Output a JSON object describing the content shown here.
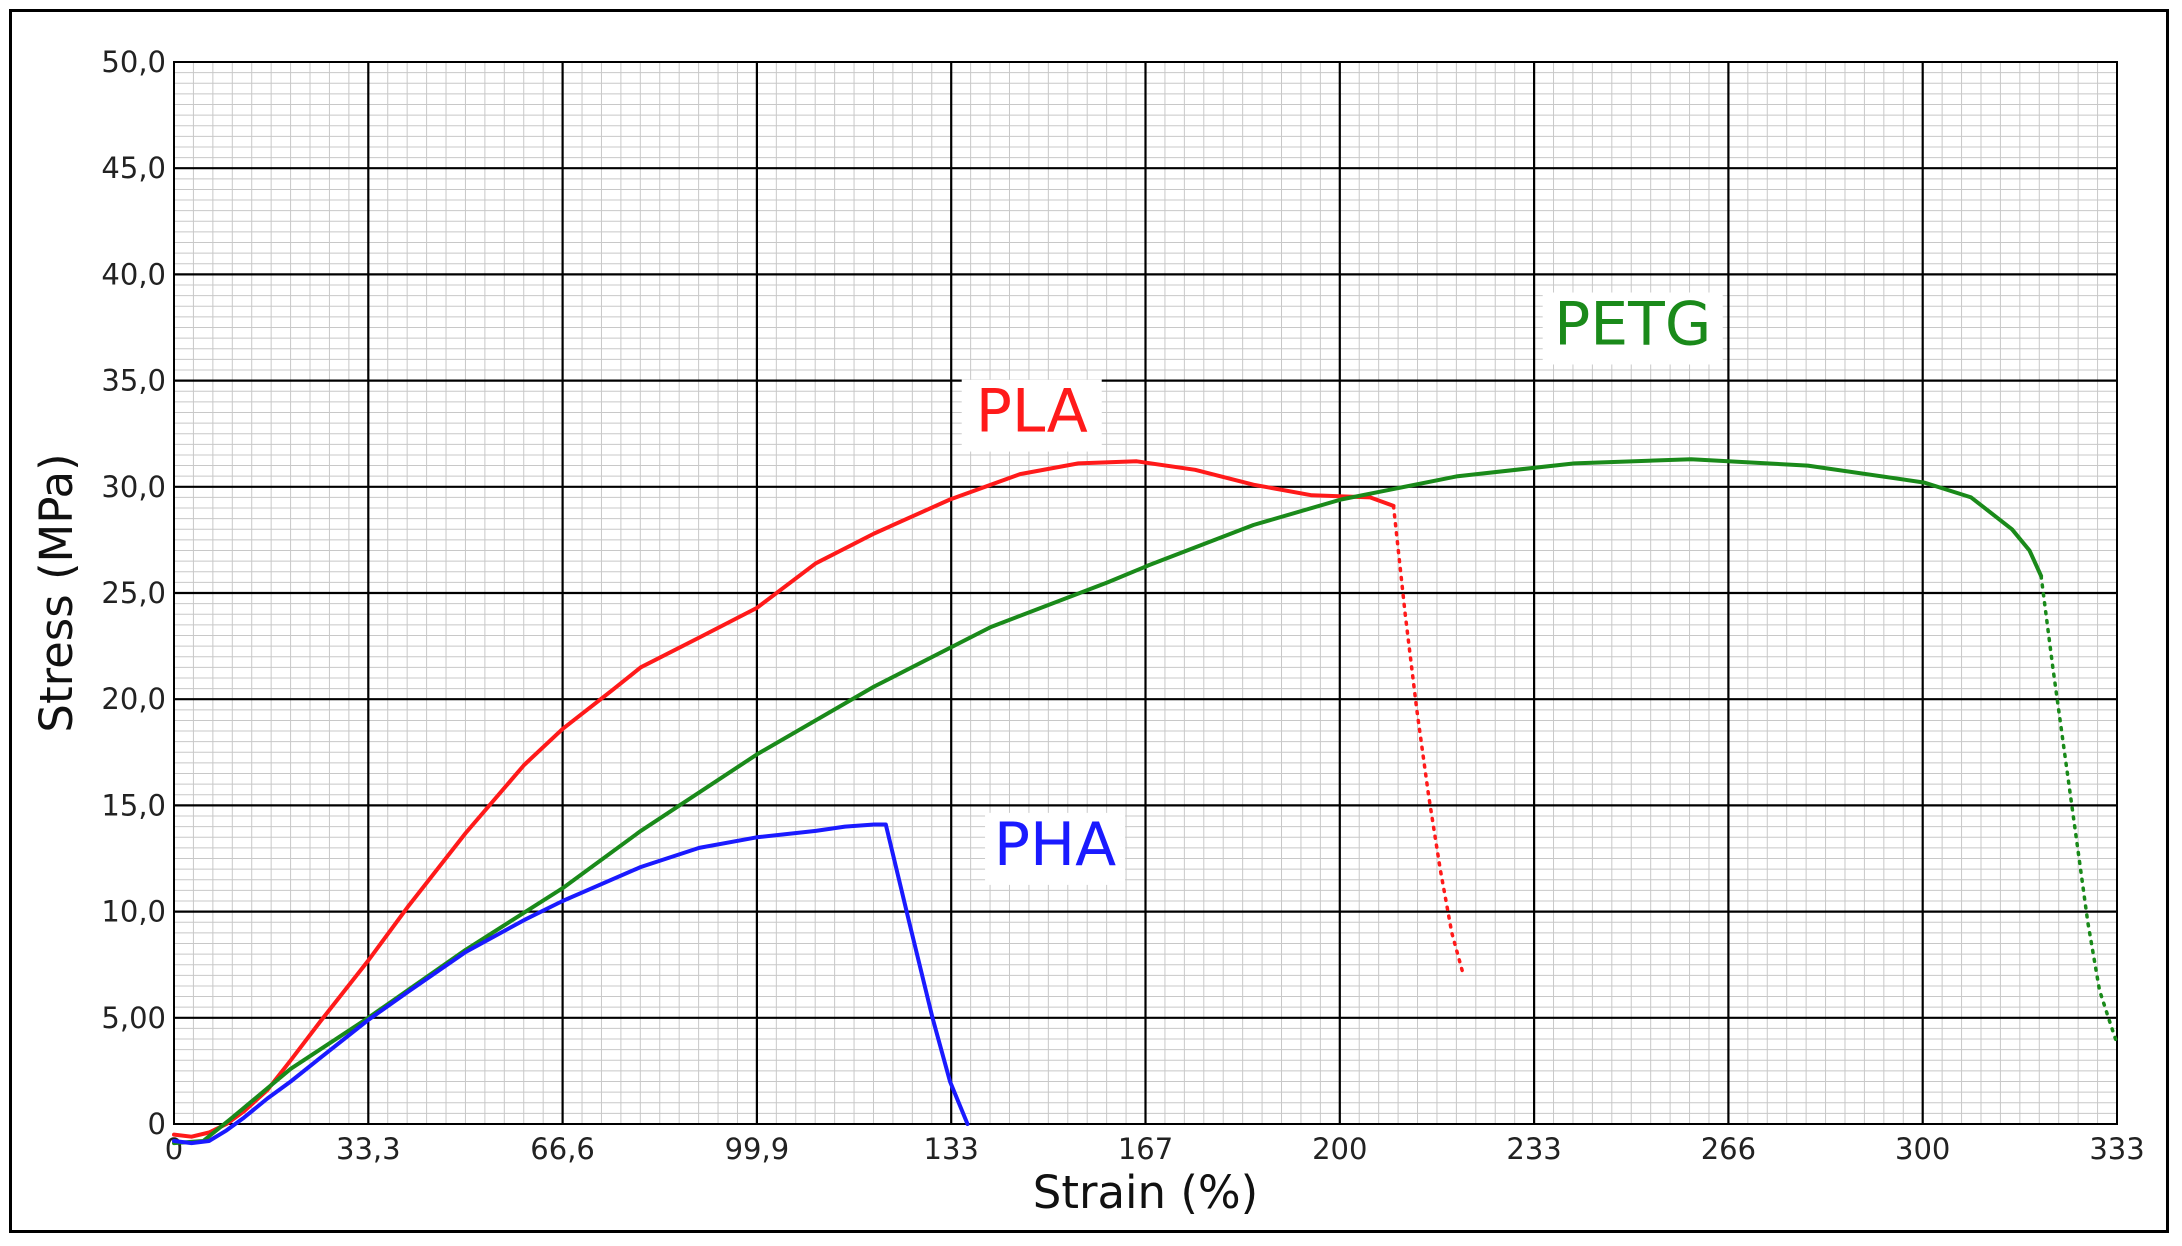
{
  "chart_data": {
    "type": "line",
    "title": "",
    "xlabel": "Strain (%)",
    "ylabel": "Stress (MPa)",
    "xlim": [
      0,
      333
    ],
    "ylim": [
      0,
      50
    ],
    "x_tick_values": [
      0,
      33.3,
      66.6,
      99.9,
      133,
      167,
      200,
      233,
      266,
      300,
      333
    ],
    "x_tick_labels": [
      "0",
      "33,3",
      "66,6",
      "99,9",
      "133",
      "167",
      "200",
      "233",
      "266",
      "300",
      "333"
    ],
    "y_tick_values": [
      0,
      5,
      10,
      15,
      20,
      25,
      30,
      35,
      40,
      45,
      50
    ],
    "y_tick_labels": [
      "0",
      "5,00",
      "10,0",
      "15,0",
      "20,0",
      "25,0",
      "30,0",
      "35,0",
      "40,0",
      "45,0",
      "50,0"
    ],
    "grid": true,
    "series": [
      {
        "name": "PLA",
        "color": "#ff1a1a",
        "label_anchor": {
          "x": 147,
          "y": 32.6
        },
        "x": [
          0,
          3,
          6,
          9,
          12,
          16,
          20,
          25,
          33.3,
          40,
          50,
          60,
          66.6,
          75,
          80,
          90,
          99.9,
          110,
          120,
          133,
          145,
          155,
          165,
          175,
          185,
          195,
          205,
          209
        ],
        "y": [
          -0.5,
          -0.6,
          -0.4,
          0,
          0.6,
          1.6,
          3.0,
          4.8,
          7.7,
          10.2,
          13.7,
          16.9,
          18.6,
          20.4,
          21.5,
          22.9,
          24.3,
          26.4,
          27.8,
          29.4,
          30.6,
          31.1,
          31.2,
          30.8,
          30.1,
          29.6,
          29.5,
          29.1
        ],
        "dotted_tail": {
          "x": [
            209,
            211,
            213,
            215,
            217,
            219,
            221
          ],
          "y": [
            29.1,
            24.0,
            19.5,
            15.5,
            12.0,
            9.0,
            7.0
          ]
        }
      },
      {
        "name": "PETG",
        "color": "#1a8a1a",
        "label_anchor": {
          "x": 250,
          "y": 36.7
        },
        "x": [
          0,
          5,
          10,
          20,
          33.3,
          50,
          66.6,
          80,
          99.9,
          120,
          140,
          160,
          167,
          185,
          200,
          220,
          240,
          260,
          280,
          300,
          308,
          315,
          318,
          320
        ],
        "y": [
          -0.9,
          -0.8,
          0.3,
          2.6,
          5.0,
          8.2,
          11.1,
          13.8,
          17.4,
          20.6,
          23.4,
          25.5,
          26.3,
          28.2,
          29.4,
          30.5,
          31.1,
          31.3,
          31.0,
          30.2,
          29.5,
          28.0,
          27.0,
          25.8
        ],
        "dotted_tail": {
          "x": [
            320,
            322,
            324,
            326,
            328,
            330,
            332,
            333
          ],
          "y": [
            25.8,
            21.5,
            17.5,
            13.5,
            9.5,
            6.3,
            4.6,
            3.8
          ]
        }
      },
      {
        "name": "PHA",
        "color": "#1a1aff",
        "label_anchor": {
          "x": 151,
          "y": 12.2
        },
        "x": [
          0,
          3,
          6,
          9,
          12,
          16,
          20,
          25,
          33.3,
          40,
          50,
          60,
          66.6,
          80,
          90,
          99.9,
          110,
          115,
          120,
          122,
          126,
          130,
          133,
          136
        ],
        "y": [
          -0.8,
          -0.9,
          -0.8,
          -0.3,
          0.3,
          1.2,
          2.0,
          3.1,
          4.9,
          6.2,
          8.1,
          9.6,
          10.5,
          12.1,
          13.0,
          13.5,
          13.8,
          14.0,
          14.1,
          14.1,
          9.5,
          5.0,
          2.0,
          0.0
        ]
      }
    ]
  }
}
